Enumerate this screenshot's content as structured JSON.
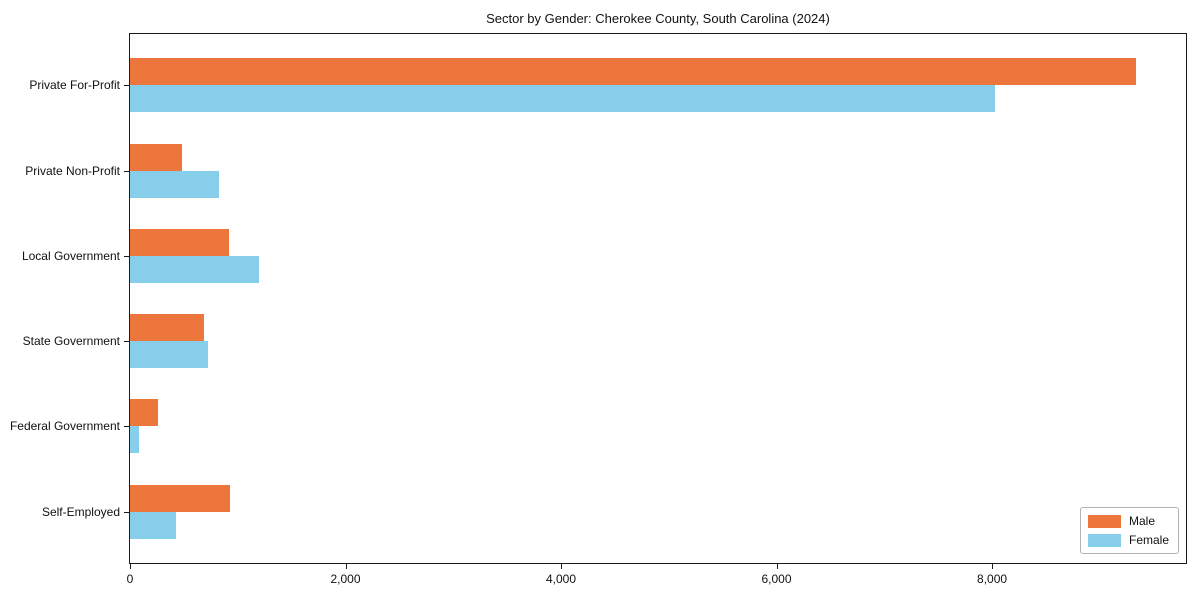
{
  "figure": {
    "title": "Sector by Gender: Cherokee County, South Carolina (2024)"
  },
  "chart_data": {
    "type": "bar",
    "orientation": "horizontal",
    "title": "Sector by Gender: Cherokee County, South Carolina (2024)",
    "categories": [
      "Private For-Profit",
      "Private Non-Profit",
      "Local Government",
      "State Government",
      "Federal Government",
      "Self-Employed"
    ],
    "series": [
      {
        "name": "Male",
        "color": "#ec763c",
        "values": [
          9340,
          480,
          920,
          690,
          260,
          930
        ]
      },
      {
        "name": "Female",
        "color": "#87ceeb",
        "values": [
          8030,
          830,
          1200,
          720,
          85,
          430
        ]
      }
    ],
    "xlabel": "",
    "ylabel": "",
    "xlim": [
      0,
      9800
    ],
    "xticks": [
      0,
      2000,
      4000,
      6000,
      8000
    ],
    "xtick_labels": [
      "0",
      "2,000",
      "4,000",
      "6,000",
      "8,000"
    ],
    "grid": false,
    "legend": {
      "position": "lower right",
      "labels": [
        "Male",
        "Female"
      ]
    }
  }
}
